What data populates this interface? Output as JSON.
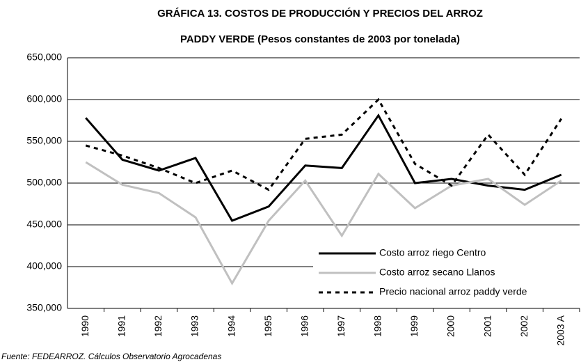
{
  "chart_data": {
    "type": "line",
    "title": "GRÁFICA 13. COSTOS DE PRODUCCIÓN Y PRECIOS DEL ARROZ",
    "subtitle": "PADDY VERDE (Pesos constantes de 2003 por tonelada)",
    "source": "Fuente: FEDEARROZ. Cálculos Observatorio Agrocadenas",
    "categories": [
      "1990",
      "1991",
      "1992",
      "1993",
      "1994",
      "1995",
      "1996",
      "1997",
      "1998",
      "1999",
      "2000",
      "2001",
      "2002",
      "2003 A"
    ],
    "series": [
      {
        "name": "Costo arroz riego Centro",
        "color": "#000000",
        "dash": "solid",
        "values": [
          578000,
          528000,
          515000,
          530000,
          455000,
          472000,
          521000,
          518000,
          581000,
          500000,
          505000,
          497000,
          492000,
          510000
        ]
      },
      {
        "name": "Costo arroz secano Llanos",
        "color": "#c0c0c0",
        "dash": "solid",
        "values": [
          525000,
          498000,
          488000,
          459000,
          380000,
          455000,
          503000,
          437000,
          511000,
          470000,
          497000,
          505000,
          474000,
          503000
        ]
      },
      {
        "name": "Precio nacional arroz paddy verde",
        "color": "#000000",
        "dash": "dashed",
        "values": [
          545000,
          533000,
          518000,
          500000,
          515000,
          492000,
          553000,
          558000,
          600000,
          523000,
          497000,
          558000,
          510000,
          577000
        ]
      }
    ],
    "ylim": [
      350000,
      650000
    ],
    "yticks": [
      {
        "value": 350000,
        "label": "350,000"
      },
      {
        "value": 400000,
        "label": "400,000"
      },
      {
        "value": 450000,
        "label": "450,000"
      },
      {
        "value": 500000,
        "label": "500,000"
      },
      {
        "value": 550000,
        "label": "550,000"
      },
      {
        "value": 600000,
        "label": "600,000"
      },
      {
        "value": 650000,
        "label": "650,000"
      }
    ],
    "grid": true,
    "legend": "lower right"
  }
}
